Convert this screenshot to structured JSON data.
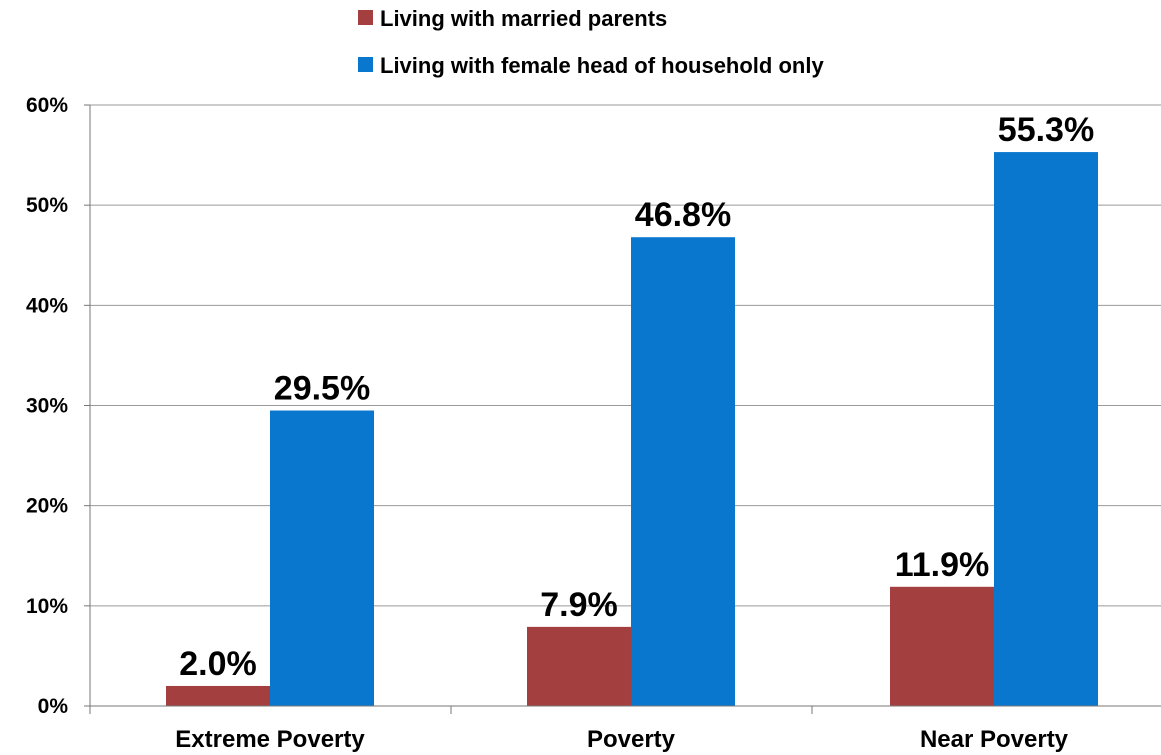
{
  "chart_data": {
    "type": "bar",
    "title": "",
    "xlabel": "",
    "ylabel": "",
    "categories": [
      "Extreme Poverty",
      "Poverty",
      "Near Poverty"
    ],
    "series": [
      {
        "name": "Living with married parents",
        "values": [
          2.0,
          7.9,
          11.9
        ],
        "labels": [
          "2.0%",
          "7.9%",
          "11.9%"
        ],
        "color": "#A33F3E"
      },
      {
        "name": "Living with female head of household only",
        "values": [
          29.5,
          46.8,
          55.3
        ],
        "labels": [
          "29.5%",
          "46.8%",
          "55.3%"
        ],
        "color": "#0A77CF"
      }
    ],
    "ylim": [
      0,
      60
    ],
    "yticks": [
      0,
      10,
      20,
      30,
      40,
      50,
      60
    ],
    "ytick_labels": [
      "0%",
      "10%",
      "20%",
      "30%",
      "40%",
      "50%",
      "60%"
    ],
    "grid": true,
    "legend_position": "top-center"
  }
}
